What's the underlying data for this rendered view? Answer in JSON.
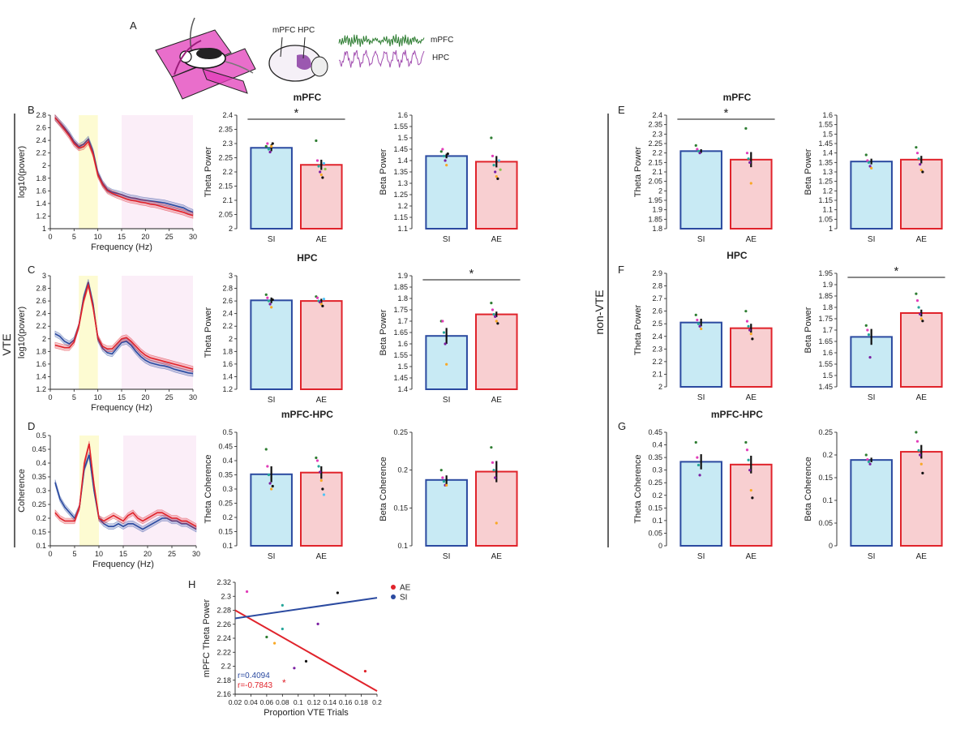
{
  "colors": {
    "si": "#2b4aa0",
    "si_fill": "#c8eaf4",
    "ae": "#e0232b",
    "ae_fill": "#f8cfd1",
    "theta_band": "#fdfbd2",
    "beta_band": "#fbeef8",
    "mpfc_trace": "#2e7d32",
    "hpc_trace": "#a24fb0",
    "maze": "#e23db9"
  },
  "panel_letters": [
    "A",
    "B",
    "C",
    "D",
    "E",
    "F",
    "G",
    "H"
  ],
  "group_labels": {
    "vte": "VTE",
    "nonvte": "non-VTE"
  },
  "schematic": {
    "region_label": "mPFC HPC",
    "trace_labels": [
      "mPFC",
      "HPC"
    ]
  },
  "chart_data": [
    {
      "id": "B_spectrum",
      "type": "line",
      "panel": "B",
      "xlabel": "Frequency (Hz)",
      "ylabel": "log10(power)",
      "xlim": [
        0,
        30
      ],
      "ylim": [
        1,
        2.8
      ],
      "xticks": [
        "0",
        "5",
        "10",
        "15",
        "20",
        "25",
        "30"
      ],
      "yticks": [
        "1",
        "1.2",
        "1.4",
        "1.6",
        "1.8",
        "2",
        "2.2",
        "2.4",
        "2.6",
        "2.8"
      ],
      "x": [
        1,
        2,
        3,
        4,
        5,
        6,
        7,
        8,
        9,
        10,
        11,
        12,
        13,
        14,
        15,
        16,
        17,
        18,
        19,
        20,
        21,
        22,
        23,
        24,
        25,
        26,
        27,
        28,
        29,
        30
      ],
      "series": [
        {
          "group": "SI",
          "values": [
            2.76,
            2.68,
            2.6,
            2.5,
            2.38,
            2.3,
            2.34,
            2.42,
            2.22,
            1.88,
            1.72,
            1.62,
            1.58,
            1.56,
            1.54,
            1.51,
            1.49,
            1.48,
            1.46,
            1.45,
            1.44,
            1.43,
            1.42,
            1.41,
            1.39,
            1.37,
            1.35,
            1.33,
            1.29,
            1.26
          ]
        },
        {
          "group": "AE",
          "values": [
            2.76,
            2.67,
            2.57,
            2.47,
            2.35,
            2.28,
            2.3,
            2.38,
            2.18,
            1.85,
            1.7,
            1.6,
            1.56,
            1.53,
            1.5,
            1.47,
            1.45,
            1.44,
            1.42,
            1.41,
            1.39,
            1.38,
            1.36,
            1.34,
            1.32,
            1.3,
            1.28,
            1.26,
            1.23,
            1.21
          ]
        }
      ],
      "theta_band": [
        6,
        10
      ],
      "beta_band": [
        15,
        30
      ]
    },
    {
      "id": "B_theta",
      "type": "bar",
      "panel": "B",
      "title": "mPFC",
      "categories": [
        "SI",
        "AE"
      ],
      "values": [
        2.285,
        2.225
      ],
      "errors": [
        0.012,
        0.018
      ],
      "ylabel": "Theta Power",
      "ylim": [
        2,
        2.4
      ],
      "yticks": [
        "2",
        "2.05",
        "2.1",
        "2.15",
        "2.2",
        "2.25",
        "2.3",
        "2.35",
        "2.4"
      ],
      "points": [
        [
          2.29,
          2.3,
          2.28,
          2.27,
          2.29,
          2.3
        ],
        [
          2.31,
          2.24,
          2.22,
          2.2,
          2.19,
          2.18,
          2.23,
          2.21
        ]
      ],
      "sig": "*"
    },
    {
      "id": "B_beta",
      "type": "bar",
      "panel": "B",
      "categories": [
        "SI",
        "AE"
      ],
      "values": [
        1.42,
        1.395
      ],
      "errors": [
        0.01,
        0.025
      ],
      "ylabel": "Beta Power",
      "ylim": [
        1.1,
        1.6
      ],
      "yticks": [
        "1.1",
        "1.15",
        "1.2",
        "1.25",
        "1.3",
        "1.35",
        "1.4",
        "1.45",
        "1.5",
        "1.55",
        "1.6"
      ],
      "points": [
        [
          1.44,
          1.45,
          1.42,
          1.4,
          1.38,
          1.43
        ],
        [
          1.5,
          1.42,
          1.38,
          1.35,
          1.33,
          1.32,
          1.4,
          1.36
        ]
      ]
    },
    {
      "id": "C_spectrum",
      "type": "line",
      "panel": "C",
      "xlabel": "Frequency (Hz)",
      "ylabel": "log10(power)",
      "xlim": [
        0,
        30
      ],
      "ylim": [
        1.2,
        3
      ],
      "xticks": [
        "0",
        "5",
        "10",
        "15",
        "20",
        "25",
        "30"
      ],
      "yticks": [
        "1.2",
        "1.4",
        "1.6",
        "1.8",
        "2",
        "2.2",
        "2.4",
        "2.6",
        "2.8",
        "3"
      ],
      "x": [
        1,
        2,
        3,
        4,
        5,
        6,
        7,
        8,
        9,
        10,
        11,
        12,
        13,
        14,
        15,
        16,
        17,
        18,
        19,
        20,
        21,
        22,
        23,
        24,
        25,
        26,
        27,
        28,
        29,
        30
      ],
      "series": [
        {
          "group": "SI",
          "values": [
            2.08,
            2.04,
            1.96,
            1.92,
            1.98,
            2.2,
            2.65,
            2.9,
            2.55,
            2.0,
            1.85,
            1.78,
            1.76,
            1.85,
            1.94,
            1.96,
            1.9,
            1.8,
            1.72,
            1.66,
            1.62,
            1.6,
            1.58,
            1.57,
            1.55,
            1.52,
            1.5,
            1.48,
            1.46,
            1.45
          ]
        },
        {
          "group": "AE",
          "values": [
            1.9,
            1.88,
            1.86,
            1.86,
            1.95,
            2.2,
            2.6,
            2.86,
            2.5,
            2.02,
            1.88,
            1.84,
            1.84,
            1.92,
            2.0,
            2.02,
            1.96,
            1.88,
            1.8,
            1.74,
            1.7,
            1.68,
            1.66,
            1.64,
            1.62,
            1.6,
            1.58,
            1.56,
            1.54,
            1.52
          ]
        }
      ],
      "theta_band": [
        6,
        10
      ],
      "beta_band": [
        15,
        30
      ]
    },
    {
      "id": "C_theta",
      "type": "bar",
      "panel": "C",
      "title": "HPC",
      "categories": [
        "SI",
        "AE"
      ],
      "values": [
        2.61,
        2.6
      ],
      "errors": [
        0.045,
        0.035
      ],
      "ylabel": "Theta Power",
      "ylim": [
        1.2,
        3
      ],
      "yticks": [
        "1.2",
        "1.4",
        "1.6",
        "1.8",
        "2",
        "2.2",
        "2.4",
        "2.6",
        "2.8",
        "3"
      ],
      "points": [
        [
          2.7,
          2.65,
          2.6,
          2.55,
          2.5,
          2.62
        ],
        [
          2.67,
          2.65,
          2.6,
          2.58,
          2.55,
          2.52,
          2.63
        ]
      ]
    },
    {
      "id": "C_beta",
      "type": "bar",
      "panel": "C",
      "categories": [
        "SI",
        "AE"
      ],
      "values": [
        1.635,
        1.73
      ],
      "errors": [
        0.035,
        0.012
      ],
      "ylabel": "Beta Power",
      "ylim": [
        1.4,
        1.9
      ],
      "yticks": [
        "1.4",
        "1.45",
        "1.5",
        "1.55",
        "1.6",
        "1.65",
        "1.7",
        "1.75",
        "1.8",
        "1.85",
        "1.9"
      ],
      "points": [
        [
          1.7,
          1.7,
          1.65,
          1.6,
          1.51
        ],
        [
          1.78,
          1.75,
          1.73,
          1.72,
          1.7,
          1.69
        ]
      ],
      "sig": "*"
    },
    {
      "id": "D_spectrum",
      "type": "line",
      "panel": "D",
      "xlabel": "Frequency (Hz)",
      "ylabel": "Coherence",
      "xlim": [
        0,
        30
      ],
      "ylim": [
        0.1,
        0.5
      ],
      "xticks": [
        "0",
        "5",
        "10",
        "15",
        "20",
        "25",
        "30"
      ],
      "yticks": [
        "0.1",
        "0.15",
        "0.2",
        "0.25",
        "0.3",
        "0.35",
        "0.4",
        "0.45",
        "0.5"
      ],
      "x": [
        1,
        2,
        3,
        4,
        5,
        6,
        7,
        8,
        9,
        10,
        11,
        12,
        13,
        14,
        15,
        16,
        17,
        18,
        19,
        20,
        21,
        22,
        23,
        24,
        25,
        26,
        27,
        28,
        29,
        30
      ],
      "series": [
        {
          "group": "SI",
          "values": [
            0.33,
            0.27,
            0.24,
            0.22,
            0.2,
            0.24,
            0.38,
            0.43,
            0.3,
            0.2,
            0.18,
            0.17,
            0.17,
            0.18,
            0.17,
            0.18,
            0.18,
            0.17,
            0.16,
            0.17,
            0.18,
            0.19,
            0.2,
            0.2,
            0.19,
            0.19,
            0.18,
            0.18,
            0.17,
            0.16
          ]
        },
        {
          "group": "AE",
          "values": [
            0.22,
            0.2,
            0.19,
            0.19,
            0.19,
            0.24,
            0.4,
            0.47,
            0.32,
            0.2,
            0.19,
            0.2,
            0.21,
            0.2,
            0.19,
            0.21,
            0.22,
            0.2,
            0.19,
            0.2,
            0.21,
            0.22,
            0.22,
            0.21,
            0.2,
            0.2,
            0.19,
            0.19,
            0.18,
            0.17
          ]
        }
      ],
      "theta_band": [
        6,
        10
      ],
      "beta_band": [
        15,
        30
      ]
    },
    {
      "id": "D_theta",
      "type": "bar",
      "panel": "D",
      "title": "mPFC-HPC",
      "categories": [
        "SI",
        "AE"
      ],
      "values": [
        0.352,
        0.358
      ],
      "errors": [
        0.028,
        0.022
      ],
      "ylabel": "Theta Coherence",
      "ylim": [
        0.1,
        0.5
      ],
      "yticks": [
        "0.1",
        "0.15",
        "0.2",
        "0.25",
        "0.3",
        "0.35",
        "0.4",
        "0.45",
        "0.5"
      ],
      "points": [
        [
          0.44,
          0.38,
          0.35,
          0.32,
          0.3,
          0.31
        ],
        [
          0.41,
          0.4,
          0.38,
          0.36,
          0.33,
          0.3,
          0.28
        ]
      ]
    },
    {
      "id": "D_beta",
      "type": "bar",
      "panel": "D",
      "categories": [
        "SI",
        "AE"
      ],
      "values": [
        0.187,
        0.198
      ],
      "errors": [
        0.006,
        0.014
      ],
      "ylabel": "Beta Coherence",
      "ylim": [
        0.1,
        0.25
      ],
      "yticks": [
        "0.1",
        "0.15",
        "0.2",
        "0.25"
      ],
      "points": [
        [
          0.2,
          0.19,
          0.185,
          0.18,
          0.18
        ],
        [
          0.23,
          0.21,
          0.2,
          0.19,
          0.13
        ]
      ]
    },
    {
      "id": "E_theta",
      "type": "bar",
      "panel": "E",
      "title": "mPFC",
      "categories": [
        "SI",
        "AE"
      ],
      "values": [
        2.21,
        2.165
      ],
      "errors": [
        0.01,
        0.04
      ],
      "ylabel": "Theta Power",
      "ylim": [
        1.8,
        2.4
      ],
      "yticks": [
        "1.8",
        "1.85",
        "1.9",
        "1.95",
        "2",
        "2.05",
        "2.1",
        "2.15",
        "2.2",
        "2.25",
        "2.3",
        "2.35",
        "2.4"
      ],
      "points": [
        [
          2.24,
          2.22,
          2.21,
          2.2
        ],
        [
          2.33,
          2.2,
          2.17,
          2.15,
          2.04
        ]
      ],
      "sig": "*"
    },
    {
      "id": "E_beta",
      "type": "bar",
      "panel": "E",
      "categories": [
        "SI",
        "AE"
      ],
      "values": [
        1.355,
        1.365
      ],
      "errors": [
        0.015,
        0.02
      ],
      "ylabel": "Beta Power",
      "ylim": [
        1,
        1.6
      ],
      "yticks": [
        "1",
        "1.05",
        "1.1",
        "1.15",
        "1.2",
        "1.25",
        "1.3",
        "1.35",
        "1.4",
        "1.45",
        "1.5",
        "1.55",
        "1.6"
      ],
      "points": [
        [
          1.39,
          1.36,
          1.35,
          1.33,
          1.32
        ],
        [
          1.43,
          1.4,
          1.37,
          1.34,
          1.31,
          1.3
        ]
      ]
    },
    {
      "id": "F_theta",
      "type": "bar",
      "panel": "F",
      "title": "HPC",
      "categories": [
        "SI",
        "AE"
      ],
      "values": [
        2.51,
        2.465
      ],
      "errors": [
        0.03,
        0.035
      ],
      "ylabel": "Theta Power",
      "ylim": [
        2,
        2.9
      ],
      "yticks": [
        "2",
        "2.1",
        "2.2",
        "2.3",
        "2.4",
        "2.5",
        "2.6",
        "2.7",
        "2.8",
        "2.9"
      ],
      "points": [
        [
          2.57,
          2.53,
          2.5,
          2.48,
          2.46
        ],
        [
          2.6,
          2.52,
          2.48,
          2.45,
          2.42,
          2.38
        ]
      ]
    },
    {
      "id": "F_beta",
      "type": "bar",
      "panel": "F",
      "categories": [
        "SI",
        "AE"
      ],
      "values": [
        1.67,
        1.775
      ],
      "errors": [
        0.035,
        0.015
      ],
      "ylabel": "Beta Power",
      "ylim": [
        1.45,
        1.95
      ],
      "yticks": [
        "1.45",
        "1.5",
        "1.55",
        "1.6",
        "1.65",
        "1.7",
        "1.75",
        "1.8",
        "1.85",
        "1.9",
        "1.95"
      ],
      "points": [
        [
          1.72,
          1.7,
          1.68,
          1.58
        ],
        [
          1.86,
          1.83,
          1.8,
          1.77,
          1.75,
          1.74
        ]
      ],
      "sig": "*"
    },
    {
      "id": "G_theta",
      "type": "bar",
      "panel": "G",
      "title": "mPFC-HPC",
      "categories": [
        "SI",
        "AE"
      ],
      "values": [
        0.333,
        0.322
      ],
      "errors": [
        0.03,
        0.035
      ],
      "ylabel": "Theta Coherence",
      "ylim": [
        0,
        0.45
      ],
      "yticks": [
        "0",
        "0.05",
        "0.1",
        "0.15",
        "0.2",
        "0.25",
        "0.3",
        "0.35",
        "0.4",
        "0.45"
      ],
      "points": [
        [
          0.41,
          0.35,
          0.32,
          0.28
        ],
        [
          0.41,
          0.38,
          0.34,
          0.3,
          0.22,
          0.19
        ]
      ]
    },
    {
      "id": "G_beta",
      "type": "bar",
      "panel": "G",
      "categories": [
        "SI",
        "AE"
      ],
      "values": [
        0.189,
        0.207
      ],
      "errors": [
        0.005,
        0.015
      ],
      "ylabel": "Beta Coherence",
      "ylim": [
        0,
        0.25
      ],
      "yticks": [
        "0",
        "0.05",
        "0.1",
        "0.15",
        "0.2",
        "0.25"
      ],
      "points": [
        [
          0.2,
          0.19,
          0.185,
          0.18
        ],
        [
          0.25,
          0.23,
          0.21,
          0.2,
          0.18,
          0.16
        ]
      ]
    },
    {
      "id": "H_scatter",
      "type": "scatter",
      "panel": "H",
      "xlabel": "Proportion VTE Trials",
      "ylabel": "mPFC Theta Power",
      "xlim": [
        0.02,
        0.2
      ],
      "ylim": [
        2.14,
        2.32
      ],
      "xticks": [
        "0.02",
        "0.04",
        "0.06",
        "0.08",
        "0.1",
        "0.12",
        "0.14",
        "0.16",
        "0.18",
        "0.2"
      ],
      "yticks": [
        "2.16",
        "2.18",
        "2.2",
        "2.22",
        "2.24",
        "2.26",
        "2.28",
        "2.3",
        "2.32"
      ],
      "series": [
        {
          "name": "AE",
          "x": [
            0.035,
            0.06,
            0.07,
            0.08,
            0.095,
            0.11,
            0.185
          ],
          "y": [
            2.305,
            2.232,
            2.222,
            2.245,
            2.182,
            2.193,
            2.177
          ],
          "fit": [
            [
              0.02,
              2.275
            ],
            [
              0.2,
              2.145
            ]
          ],
          "r_label": "r=-0.7843",
          "sig": "*"
        },
        {
          "name": "SI",
          "x": [
            0.08,
            0.125,
            0.15
          ],
          "y": [
            2.283,
            2.253,
            2.303
          ],
          "fit": [
            [
              0.02,
              2.262
            ],
            [
              0.2,
              2.295
            ]
          ],
          "r_label": "r=0.4094"
        }
      ],
      "legend": "top-right"
    }
  ]
}
